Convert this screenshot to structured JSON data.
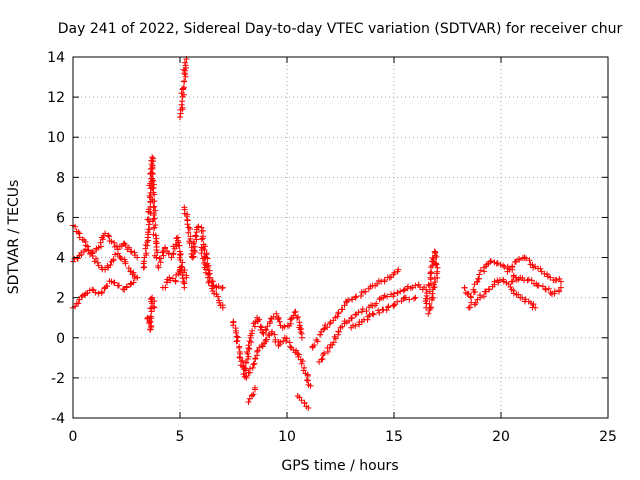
{
  "chart_data": {
    "type": "scatter",
    "title": "Day 241 of 2022, Sidereal Day-to-day VTEC variation (SDTVAR) for receiver chur",
    "xlabel": "GPS time / hours",
    "ylabel": "SDTVAR / TECUs",
    "xlim": [
      0,
      25
    ],
    "ylim": [
      -4,
      14
    ],
    "x_ticks": [
      0,
      5,
      10,
      15,
      20,
      25
    ],
    "y_ticks": [
      -4,
      -2,
      0,
      2,
      4,
      6,
      8,
      10,
      12,
      14
    ],
    "grid": true,
    "marker": "+",
    "color": "#ff0000",
    "series": [
      {
        "name": "SDTVAR",
        "segments": [
          {
            "x": [
              0.0,
              0.3,
              0.6,
              0.9,
              1.2,
              1.5,
              1.8,
              2.1,
              2.4,
              2.7,
              3.0
            ],
            "y": [
              5.6,
              5.2,
              4.6,
              4.2,
              4.5,
              5.2,
              4.8,
              4.4,
              4.7,
              4.3,
              4.0
            ]
          },
          {
            "x": [
              0.0,
              0.3,
              0.6,
              0.9,
              1.2,
              1.5,
              1.8,
              2.1,
              2.4,
              2.7,
              3.0
            ],
            "y": [
              3.8,
              4.1,
              4.4,
              4.2,
              3.6,
              3.4,
              3.8,
              4.2,
              3.9,
              3.3,
              3.0
            ]
          },
          {
            "x": [
              0.0,
              0.3,
              0.6,
              0.9,
              1.2,
              1.5,
              1.8,
              2.1,
              2.4,
              2.7,
              3.0
            ],
            "y": [
              1.5,
              1.9,
              2.2,
              2.4,
              2.2,
              2.5,
              2.8,
              2.6,
              2.4,
              2.7,
              3.0
            ]
          },
          {
            "x": [
              3.3,
              3.5,
              3.6,
              3.7,
              3.8,
              3.9
            ],
            "y": [
              3.5,
              5.0,
              7.0,
              9.0,
              5.5,
              4.0
            ]
          },
          {
            "x": [
              3.5,
              3.6,
              3.7,
              3.8
            ],
            "y": [
              1.0,
              0.4,
              2.0,
              1.5
            ]
          },
          {
            "x": [
              4.0,
              4.3,
              4.6,
              4.9,
              5.1,
              5.3
            ],
            "y": [
              3.5,
              4.5,
              4.0,
              5.0,
              3.5,
              3.0
            ]
          },
          {
            "x": [
              4.2,
              4.5,
              4.8,
              5.0,
              5.2
            ],
            "y": [
              2.5,
              3.0,
              2.8,
              3.5,
              2.5
            ]
          },
          {
            "x": [
              5.0,
              5.1,
              5.2,
              5.3
            ],
            "y": [
              11.0,
              11.8,
              12.8,
              13.9
            ]
          },
          {
            "x": [
              5.2,
              5.4,
              5.6,
              5.8,
              6.0,
              6.2,
              6.4,
              6.7,
              7.0
            ],
            "y": [
              6.5,
              5.5,
              4.0,
              5.5,
              5.5,
              4.0,
              3.0,
              2.5,
              2.5
            ]
          },
          {
            "x": [
              6.0,
              6.3,
              6.6,
              7.0
            ],
            "y": [
              4.5,
              3.0,
              2.2,
              1.5
            ]
          },
          {
            "x": [
              7.5,
              7.8,
              8.1,
              8.4,
              8.7,
              9.0,
              9.3,
              9.6,
              9.9,
              10.2,
              10.5,
              10.8,
              11.1
            ],
            "y": [
              0.8,
              -1.0,
              -2.0,
              -1.5,
              -0.5,
              -0.2,
              0.3,
              -0.4,
              0.0,
              -0.5,
              -0.8,
              -1.5,
              -2.4
            ]
          },
          {
            "x": [
              8.0,
              8.3,
              8.6,
              8.9,
              9.2,
              9.5,
              9.8,
              10.1,
              10.4,
              10.7
            ],
            "y": [
              -1.8,
              0.0,
              1.0,
              0.2,
              0.8,
              1.2,
              0.5,
              0.6,
              1.3,
              0.0
            ]
          },
          {
            "x": [
              8.2,
              8.5
            ],
            "y": [
              -3.2,
              -2.5
            ]
          },
          {
            "x": [
              10.5,
              11.0
            ],
            "y": [
              -2.9,
              -3.5
            ]
          },
          {
            "x": [
              11.2,
              11.6,
              12.0,
              12.4,
              12.8,
              13.2,
              13.6,
              14.0,
              14.4,
              14.8,
              15.2
            ],
            "y": [
              -0.5,
              0.3,
              0.7,
              1.2,
              1.8,
              2.0,
              2.3,
              2.6,
              2.8,
              3.0,
              3.4
            ]
          },
          {
            "x": [
              11.5,
              12.0,
              12.5,
              13.0,
              13.5,
              14.0,
              14.5,
              15.0,
              15.5,
              16.0,
              16.5
            ],
            "y": [
              -1.2,
              -0.5,
              0.5,
              1.0,
              1.3,
              1.6,
              2.0,
              2.2,
              2.4,
              2.6,
              2.4
            ]
          },
          {
            "x": [
              13.0,
              13.5,
              14.0,
              14.5,
              15.0,
              15.5,
              16.0
            ],
            "y": [
              0.5,
              0.8,
              1.2,
              1.4,
              1.6,
              2.0,
              2.0
            ]
          },
          {
            "x": [
              16.5,
              16.7,
              16.9,
              17.0,
              16.8,
              16.6
            ],
            "y": [
              1.5,
              3.0,
              4.3,
              3.2,
              2.2,
              1.2
            ]
          },
          {
            "x": [
              18.3,
              18.6,
              18.9,
              19.2,
              19.5,
              19.8,
              20.1,
              20.4,
              20.7
            ],
            "y": [
              2.5,
              2.0,
              2.8,
              3.5,
              3.8,
              3.7,
              3.6,
              3.4,
              3.0
            ]
          },
          {
            "x": [
              18.5,
              18.9,
              19.3,
              19.7,
              20.1,
              20.5,
              20.9,
              21.3,
              21.6
            ],
            "y": [
              1.5,
              1.9,
              2.3,
              2.8,
              2.9,
              2.4,
              2.0,
              1.8,
              1.5
            ]
          },
          {
            "x": [
              20.3,
              20.7,
              21.1,
              21.5,
              21.9,
              22.3,
              22.8
            ],
            "y": [
              3.3,
              3.8,
              4.0,
              3.5,
              3.3,
              3.0,
              2.8
            ]
          },
          {
            "x": [
              20.5,
              20.9,
              21.3,
              21.7,
              22.1,
              22.5,
              22.8
            ],
            "y": [
              2.8,
              3.0,
              2.9,
              2.6,
              2.4,
              2.2,
              2.5
            ]
          }
        ]
      }
    ]
  }
}
